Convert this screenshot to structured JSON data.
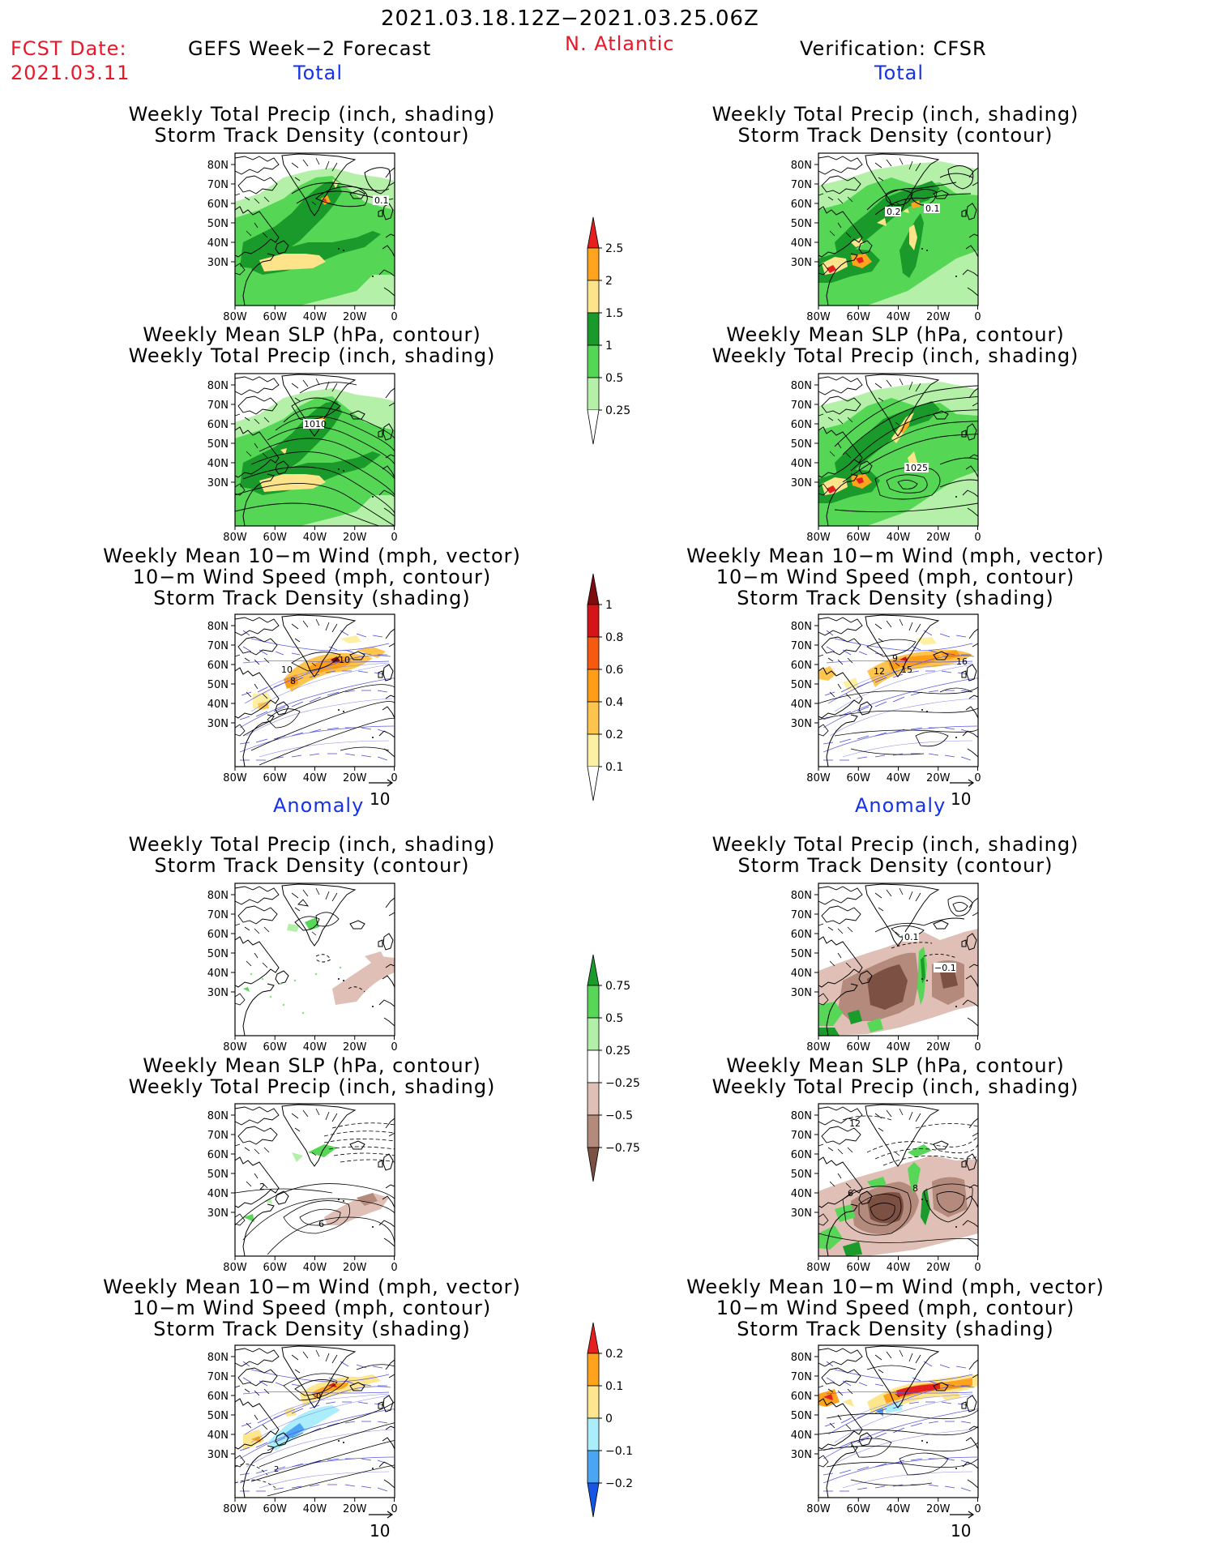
{
  "header": {
    "period": "2021.03.18.12Z−2021.03.25.06Z",
    "fcst_label": "FCST Date:",
    "fcst_date": "2021.03.11",
    "forecast_title": "GEFS Week−2 Forecast",
    "region": "N. Atlantic",
    "verification": "Verification: CFSR"
  },
  "sections": {
    "total": "Total",
    "anomaly": "Anomaly"
  },
  "panel_titles": {
    "precip_track": [
      "Weekly Total Precip (inch, shading)",
      "Storm Track Density (contour)"
    ],
    "slp_precip": [
      "Weekly Mean SLP (hPa, contour)",
      "Weekly Total Precip (inch, shading)"
    ],
    "wind_track": [
      "Weekly Mean 10−m Wind (mph, vector)",
      "10−m Wind Speed (mph, contour)",
      "Storm Track Density (shading)"
    ]
  },
  "axes": {
    "lat_labels": [
      "80N",
      "70N",
      "60N",
      "50N",
      "40N",
      "30N"
    ],
    "lon_labels": [
      "80W",
      "60W",
      "40W",
      "20W",
      "0"
    ]
  },
  "contour_labels": {
    "fc_track": [
      "0.1"
    ],
    "vf_track": [
      "0.2",
      "0.1"
    ],
    "fc_slp": [
      "1010"
    ],
    "vf_slp": [
      "1025"
    ],
    "fc_wind": [
      "10",
      "10",
      "8"
    ],
    "vf_wind": [
      "9",
      "12",
      "15",
      "16"
    ],
    "vf_anom_track": [
      "0.1",
      "−0.1"
    ],
    "fc_anom_slp": [
      "2",
      "6"
    ],
    "vf_anom_slp": [
      "12",
      "6",
      "8"
    ],
    "fc_anom_wind": [
      "0",
      "2"
    ]
  },
  "vector_ref": "10",
  "colorbars": {
    "total_precip": {
      "labels": [
        "2.5",
        "2",
        "1.5",
        "1",
        "0.5",
        "0.25"
      ],
      "colors": [
        "#e51f1f",
        "#ffa41e",
        "#fde48a",
        "#1a9a2a",
        "#55d655",
        "#b4f0a8"
      ]
    },
    "total_track": {
      "labels": [
        "1",
        "0.8",
        "0.6",
        "0.4",
        "0.2",
        "0.1"
      ],
      "colors": [
        "#7e0c0c",
        "#d5141a",
        "#f55a10",
        "#ff9e16",
        "#fdc44e",
        "#fef0a2"
      ]
    },
    "anom_precip": {
      "labels": [
        "0.75",
        "0.5",
        "0.25",
        "−0.25",
        "−0.5",
        "−0.75"
      ],
      "colors": [
        "#1b9b2b",
        "#58d658",
        "#b2efa8",
        "#ffffff",
        "#e0c0b6",
        "#b38a7c",
        "#7c5043"
      ]
    },
    "anom_track": {
      "labels": [
        "0.2",
        "0.1",
        "0",
        "−0.1",
        "−0.2"
      ],
      "colors": [
        "#e52020",
        "#ffa21e",
        "#fde68e",
        "#aaeefb",
        "#4aa6f4",
        "#1457e6"
      ]
    }
  }
}
